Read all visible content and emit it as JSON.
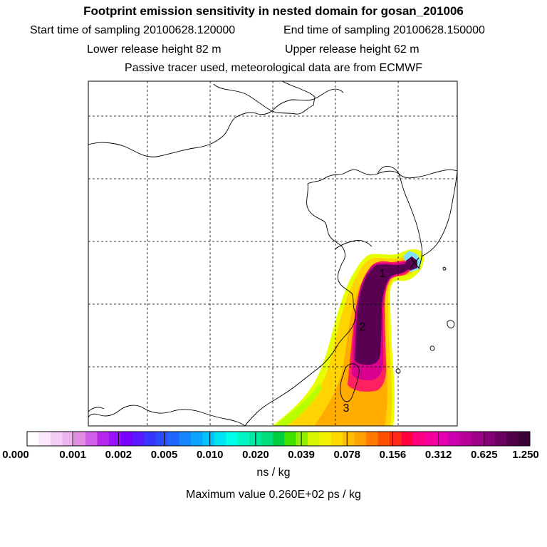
{
  "header": {
    "title": "Footprint emission sensitivity in nested domain for gosan_201006",
    "start_label": "Start time of sampling 20100628.120000",
    "end_label": "End time of sampling 20100628.150000",
    "lower_label": "Lower release height   82 m",
    "upper_label": "Upper release height   62 m",
    "tracer_label": "Passive tracer used, meteorological data are from ECMWF"
  },
  "map": {
    "markers": [
      "1",
      "2",
      "3"
    ]
  },
  "colorbar": {
    "labels": [
      "0.000",
      "0.001",
      "0.002",
      "0.005",
      "0.010",
      "0.020",
      "0.039",
      "0.078",
      "0.156",
      "0.312",
      "0.625",
      "1.250"
    ],
    "colors": [
      "#ffffff",
      "#fbe6fb",
      "#f4ccf4",
      "#eeb3ee",
      "#e28ce2",
      "#cf5fe6",
      "#b628ef",
      "#9b10ff",
      "#7a00ff",
      "#5a18ff",
      "#3a34ff",
      "#2c4dff",
      "#1f66ff",
      "#1684ff",
      "#0aa2ff",
      "#00c2ff",
      "#00e2f6",
      "#00ffe6",
      "#00f4c4",
      "#00e8a0",
      "#00e07a",
      "#00d040",
      "#3ee100",
      "#90ef00",
      "#d7f500",
      "#f4f000",
      "#ffd800",
      "#ffbc00",
      "#ffa200",
      "#ff7a00",
      "#ff5000",
      "#ff2a1a",
      "#ff0040",
      "#ff0080",
      "#f5009a",
      "#e600b0",
      "#cc00b0",
      "#b80098",
      "#a00088",
      "#880078",
      "#6a0060",
      "#500048",
      "#3a0038"
    ],
    "units": "ns / kg"
  },
  "footer": {
    "max_value": "Maximum value  0.260E+02 ps / kg"
  }
}
